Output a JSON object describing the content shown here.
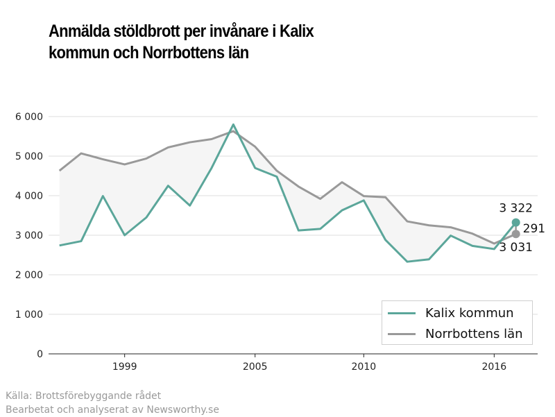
{
  "title_lines": [
    "Anmälda stöldbrott per invånare i Kalix",
    "kommun och Norrbottens län"
  ],
  "source_lines": [
    "Källa: Brottsförebyggande rådet",
    "Bearbetat och analyserat av Newsworthy.se"
  ],
  "colors": {
    "kalix": "#5ba69a",
    "norrbotten": "#999999",
    "fill": "#f5f5f5",
    "grid": "#dddddd"
  },
  "chart_data": {
    "type": "line",
    "title": "Anmälda stöldbrott per invånare i Kalix kommun och Norrbottens län",
    "xlabel": "",
    "ylabel": "",
    "x": [
      1996,
      1997,
      1998,
      1999,
      2000,
      2001,
      2002,
      2003,
      2004,
      2005,
      2006,
      2007,
      2008,
      2009,
      2010,
      2011,
      2012,
      2013,
      2014,
      2015,
      2016,
      2017
    ],
    "x_ticks": [
      1999,
      2005,
      2010,
      2016
    ],
    "x_tick_labels": [
      "1999",
      "2005",
      "2010",
      "2016"
    ],
    "ylim": [
      0,
      6000
    ],
    "y_ticks": [
      0,
      1000,
      2000,
      3000,
      4000,
      5000,
      6000
    ],
    "y_tick_labels": [
      "0",
      "1 000",
      "2 000",
      "3 000",
      "4 000",
      "5 000",
      "6 000"
    ],
    "grid": true,
    "legend_position": "bottom-right",
    "series": [
      {
        "name": "Kalix kommun",
        "values": [
          2740,
          2850,
          3990,
          3000,
          3450,
          4250,
          3750,
          4700,
          5800,
          4700,
          4480,
          3120,
          3160,
          3630,
          3880,
          2880,
          2330,
          2390,
          2990,
          2730,
          2650,
          3322
        ]
      },
      {
        "name": "Norrbottens län",
        "values": [
          4630,
          5070,
          4920,
          4790,
          4940,
          5220,
          5350,
          5430,
          5630,
          5240,
          4630,
          4230,
          3920,
          4340,
          3990,
          3960,
          3350,
          3250,
          3200,
          3040,
          2790,
          3031
        ]
      }
    ],
    "annotations": {
      "kalix_end": "3 322",
      "norrbotten_end": "3 031",
      "difference": "291"
    }
  }
}
